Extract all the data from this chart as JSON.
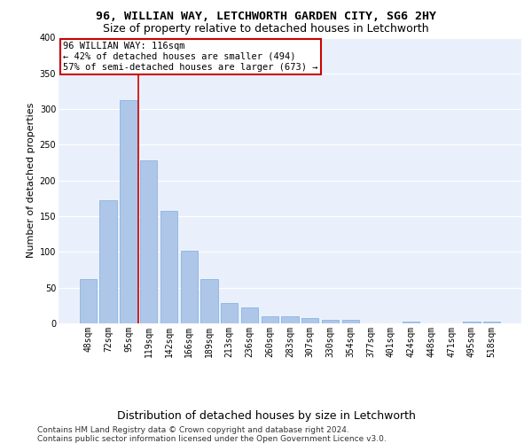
{
  "title1": "96, WILLIAN WAY, LETCHWORTH GARDEN CITY, SG6 2HY",
  "title2": "Size of property relative to detached houses in Letchworth",
  "xlabel": "Distribution of detached houses by size in Letchworth",
  "ylabel": "Number of detached properties",
  "categories": [
    "48sqm",
    "72sqm",
    "95sqm",
    "119sqm",
    "142sqm",
    "166sqm",
    "189sqm",
    "213sqm",
    "236sqm",
    "260sqm",
    "283sqm",
    "307sqm",
    "330sqm",
    "354sqm",
    "377sqm",
    "401sqm",
    "424sqm",
    "448sqm",
    "471sqm",
    "495sqm",
    "518sqm"
  ],
  "values": [
    62,
    172,
    313,
    228,
    157,
    102,
    62,
    28,
    22,
    10,
    10,
    7,
    5,
    5,
    0,
    0,
    3,
    0,
    0,
    2,
    2
  ],
  "bar_color": "#aec6e8",
  "bar_edge_color": "#7aade0",
  "bg_color": "#eaf0fb",
  "grid_color": "#ffffff",
  "vline_color": "#cc0000",
  "annotation_text": "96 WILLIAN WAY: 116sqm\n← 42% of detached houses are smaller (494)\n57% of semi-detached houses are larger (673) →",
  "annotation_box_color": "#cc0000",
  "ylim": [
    0,
    400
  ],
  "yticks": [
    0,
    50,
    100,
    150,
    200,
    250,
    300,
    350,
    400
  ],
  "footer1": "Contains HM Land Registry data © Crown copyright and database right 2024.",
  "footer2": "Contains public sector information licensed under the Open Government Licence v3.0.",
  "title1_fontsize": 9.5,
  "title2_fontsize": 9,
  "xlabel_fontsize": 9,
  "ylabel_fontsize": 8,
  "tick_fontsize": 7,
  "annotation_fontsize": 7.5,
  "footer_fontsize": 6.5
}
